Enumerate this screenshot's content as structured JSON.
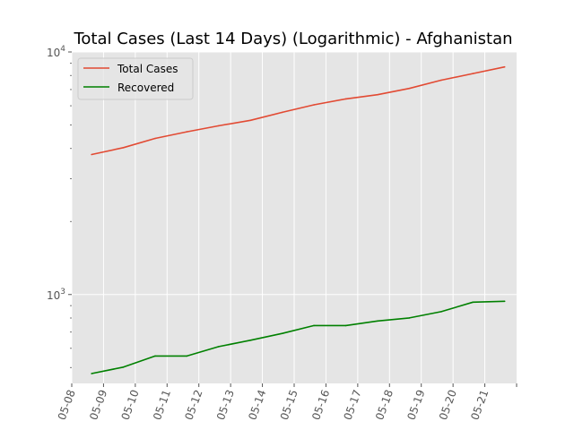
{
  "chart_data": {
    "type": "line",
    "title": "Total Cases (Last 14 Days) (Logarithmic) - Afghanistan",
    "xlabel": "",
    "ylabel": "",
    "y_scale": "log",
    "ylim": [
      430,
      10000
    ],
    "y_major_ticks": [
      {
        "value": 1000,
        "base": "10",
        "exp": "3"
      },
      {
        "value": 10000,
        "base": "10",
        "exp": "4"
      }
    ],
    "x_tick_labels": [
      "05-08",
      "05-09",
      "05-10",
      "05-11",
      "05-12",
      "05-13",
      "05-14",
      "05-15",
      "05-16",
      "05-17",
      "05-18",
      "05-19",
      "05-20",
      "05-21"
    ],
    "x": [
      "05-08 15:00",
      "05-09 15:00",
      "05-10 15:00",
      "05-11 15:00",
      "05-12 15:00",
      "05-13 15:00",
      "05-14 15:00",
      "05-15 15:00",
      "05-16 15:00",
      "05-17 15:00",
      "05-18 15:00",
      "05-19 15:00",
      "05-20 15:00",
      "05-21 15:00"
    ],
    "series": [
      {
        "name": "Total Cases",
        "color": "#e24a33",
        "values": [
          3778,
          4033,
          4402,
          4687,
          4963,
          5226,
          5639,
          6053,
          6402,
          6664,
          7072,
          7653,
          8145,
          8676
        ]
      },
      {
        "name": "Recovered",
        "color": "#008000",
        "values": [
          472,
          502,
          558,
          558,
          610,
          648,
          691,
          745,
          745,
          778,
          801,
          850,
          930,
          938
        ]
      }
    ],
    "legend_position": "upper left",
    "grid": true,
    "background": "#e5e5e5"
  }
}
